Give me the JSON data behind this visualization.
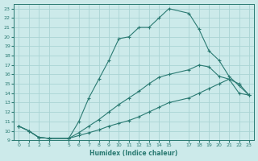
{
  "xlabel": "Humidex (Indice chaleur)",
  "bg_color": "#cceaea",
  "grid_color": "#aad4d4",
  "line_color": "#2a7a72",
  "xlim": [
    -0.5,
    23.5
  ],
  "ylim": [
    9,
    23.5
  ],
  "xticks": [
    0,
    1,
    2,
    3,
    5,
    6,
    7,
    8,
    9,
    10,
    11,
    12,
    13,
    14,
    15,
    17,
    18,
    19,
    20,
    21,
    22,
    23
  ],
  "yticks": [
    9,
    10,
    11,
    12,
    13,
    14,
    15,
    16,
    17,
    18,
    19,
    20,
    21,
    22,
    23
  ],
  "lines": [
    {
      "x": [
        0,
        1,
        2,
        3,
        5,
        6,
        7,
        8,
        9,
        10,
        11,
        12,
        13,
        14,
        15,
        17,
        18,
        19,
        20,
        21,
        22,
        23
      ],
      "y": [
        10.5,
        10.0,
        9.3,
        9.2,
        9.2,
        11.0,
        13.5,
        15.5,
        17.5,
        19.8,
        20.0,
        21.0,
        21.0,
        22.0,
        23.0,
        22.5,
        20.8,
        18.5,
        17.5,
        15.8,
        14.8,
        13.8
      ]
    },
    {
      "x": [
        0,
        1,
        2,
        3,
        5,
        6,
        7,
        8,
        9,
        10,
        11,
        12,
        13,
        14,
        15,
        17,
        18,
        19,
        20,
        21,
        22,
        23
      ],
      "y": [
        10.5,
        10.0,
        9.3,
        9.2,
        9.2,
        9.8,
        10.5,
        11.2,
        12.0,
        12.8,
        13.5,
        14.2,
        15.0,
        15.7,
        16.0,
        16.5,
        17.0,
        16.8,
        15.8,
        15.5,
        15.0,
        13.8
      ]
    },
    {
      "x": [
        0,
        1,
        2,
        3,
        5,
        6,
        7,
        8,
        9,
        10,
        11,
        12,
        13,
        14,
        15,
        17,
        18,
        19,
        20,
        21,
        22,
        23
      ],
      "y": [
        10.5,
        10.0,
        9.3,
        9.2,
        9.2,
        9.5,
        9.8,
        10.1,
        10.5,
        10.8,
        11.1,
        11.5,
        12.0,
        12.5,
        13.0,
        13.5,
        14.0,
        14.5,
        15.0,
        15.5,
        14.0,
        13.8
      ]
    }
  ]
}
